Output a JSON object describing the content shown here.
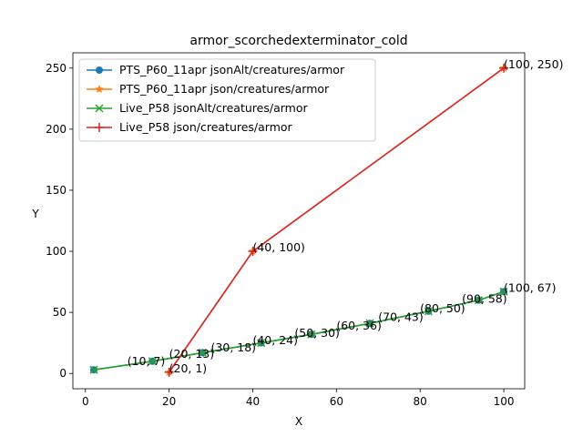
{
  "chart_data": {
    "type": "line",
    "title": "armor_scorchedexterminator_cold",
    "xlabel": "X",
    "ylabel": "Y",
    "xlim": [
      -3,
      105
    ],
    "ylim": [
      -12.5,
      262.5
    ],
    "xticks": [
      0,
      20,
      40,
      60,
      80,
      100
    ],
    "yticks": [
      0,
      50,
      100,
      150,
      200,
      250
    ],
    "grid": false,
    "legend_position": "top-left",
    "series": [
      {
        "name": "PTS_P60_11apr jsonAlt/creatures/armor",
        "color": "#1f77b4",
        "marker": "circle",
        "x": [
          2,
          16,
          28,
          42,
          54,
          68,
          82,
          94,
          100
        ],
        "y": [
          3,
          10,
          17,
          25,
          32,
          41,
          51,
          60,
          67
        ]
      },
      {
        "name": "PTS_P60_11apr json/creatures/armor",
        "color": "#ff7f0e",
        "marker": "star",
        "x": [
          20,
          40,
          100
        ],
        "y": [
          1,
          100,
          250
        ]
      },
      {
        "name": "Live_P58 jsonAlt/creatures/armor",
        "color": "#2ca02c",
        "marker": "x",
        "x": [
          2,
          16,
          28,
          42,
          54,
          68,
          82,
          94,
          100
        ],
        "y": [
          3,
          10,
          17,
          25,
          32,
          41,
          51,
          60,
          67
        ]
      },
      {
        "name": "Live_P58 json/creatures/armor",
        "color": "#d62728",
        "marker": "plus",
        "x": [
          20,
          40,
          100
        ],
        "y": [
          1,
          100,
          250
        ]
      }
    ],
    "annotations": [
      {
        "x": 10,
        "y": 7,
        "text": "(10, 7)"
      },
      {
        "x": 20,
        "y": 13,
        "text": "(20, 13)"
      },
      {
        "x": 30,
        "y": 18,
        "text": "(30, 18)"
      },
      {
        "x": 40,
        "y": 24,
        "text": "(40, 24)"
      },
      {
        "x": 50,
        "y": 30,
        "text": "(50, 30)"
      },
      {
        "x": 60,
        "y": 36,
        "text": "(60, 36)"
      },
      {
        "x": 70,
        "y": 43,
        "text": "(70, 43)"
      },
      {
        "x": 80,
        "y": 50,
        "text": "(80, 50)"
      },
      {
        "x": 90,
        "y": 58,
        "text": "(90, 58)"
      },
      {
        "x": 100,
        "y": 67,
        "text": "(100, 67)"
      },
      {
        "x": 20,
        "y": 1,
        "text": "(20, 1)"
      },
      {
        "x": 40,
        "y": 100,
        "text": "(40, 100)"
      },
      {
        "x": 100,
        "y": 250,
        "text": "(100, 250)"
      }
    ]
  }
}
